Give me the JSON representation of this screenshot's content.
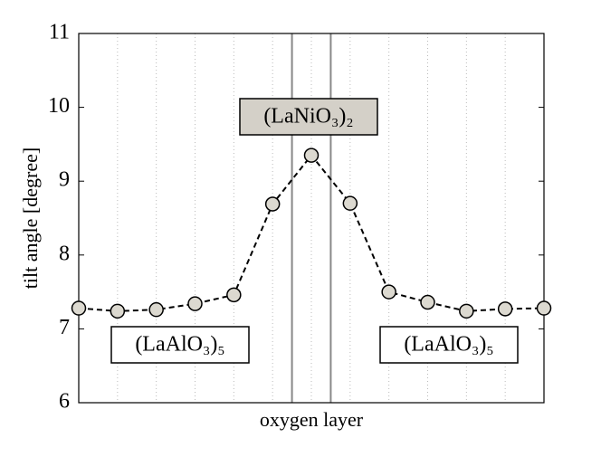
{
  "chart_data": {
    "type": "line",
    "xlabel": "oxygen layer",
    "ylabel": "tilt angle [degree]",
    "x": [
      0,
      1,
      2,
      3,
      4,
      5,
      6,
      7,
      8,
      9,
      10,
      11,
      12
    ],
    "series": [
      {
        "name": "tilt angle",
        "color": "#000000",
        "values": [
          7.28,
          7.24,
          7.26,
          7.34,
          7.46,
          8.69,
          9.35,
          8.7,
          7.5,
          7.36,
          7.24,
          7.27,
          7.28
        ]
      }
    ],
    "xlim": [
      0,
      12
    ],
    "ylim": [
      6,
      11
    ],
    "yticks": [
      6,
      7,
      8,
      9,
      10,
      11
    ],
    "grid": true,
    "interfaces": [
      5.5,
      6.5
    ],
    "annotations": [
      "(LaNiO₃)₂",
      "(LaAlO₃)₅",
      "(LaAlO₃)₅"
    ]
  }
}
